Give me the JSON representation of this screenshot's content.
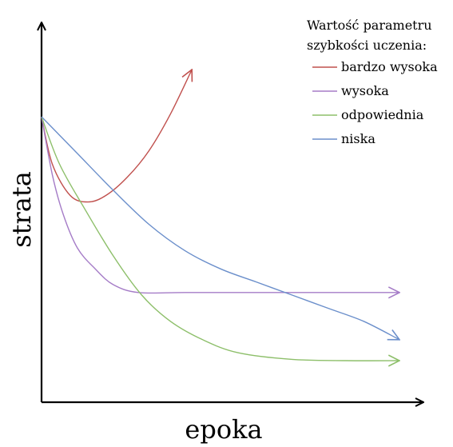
{
  "chart_data": {
    "type": "line",
    "xlabel": "epoka",
    "ylabel": "strata",
    "grid": false,
    "legend": {
      "title_line1": "Wartość parametru",
      "title_line2": "szybkości uczenia:",
      "placement": "top-right"
    },
    "series": [
      {
        "name": "bardzo wysoka",
        "color": "#c0504d",
        "points": [
          [
            0,
            100
          ],
          [
            3,
            82
          ],
          [
            8,
            70
          ],
          [
            13,
            67.5
          ],
          [
            18,
            70
          ],
          [
            24,
            77
          ],
          [
            30,
            87
          ],
          [
            36,
            101
          ],
          [
            42,
            118
          ]
        ]
      },
      {
        "name": "wysoka",
        "color": "#a57cc7",
        "points": [
          [
            0,
            100
          ],
          [
            3,
            78
          ],
          [
            6,
            63
          ],
          [
            10,
            50
          ],
          [
            15,
            42
          ],
          [
            20,
            36
          ],
          [
            27,
            33
          ],
          [
            40,
            33
          ],
          [
            60,
            33
          ],
          [
            80,
            33
          ],
          [
            100,
            33
          ]
        ]
      },
      {
        "name": "odpowiednia",
        "color": "#8dbf6a",
        "points": [
          [
            0,
            100
          ],
          [
            5,
            82
          ],
          [
            12,
            65
          ],
          [
            20,
            47
          ],
          [
            28,
            32
          ],
          [
            36,
            22
          ],
          [
            45,
            15
          ],
          [
            55,
            10
          ],
          [
            70,
            7.5
          ],
          [
            85,
            7
          ],
          [
            100,
            7
          ]
        ]
      },
      {
        "name": "niska",
        "color": "#6b8fcb",
        "points": [
          [
            0,
            100
          ],
          [
            10,
            86
          ],
          [
            20,
            72
          ],
          [
            30,
            59
          ],
          [
            40,
            49
          ],
          [
            50,
            42
          ],
          [
            60,
            37
          ],
          [
            70,
            32
          ],
          [
            80,
            27
          ],
          [
            90,
            22
          ],
          [
            100,
            15
          ]
        ]
      }
    ]
  }
}
